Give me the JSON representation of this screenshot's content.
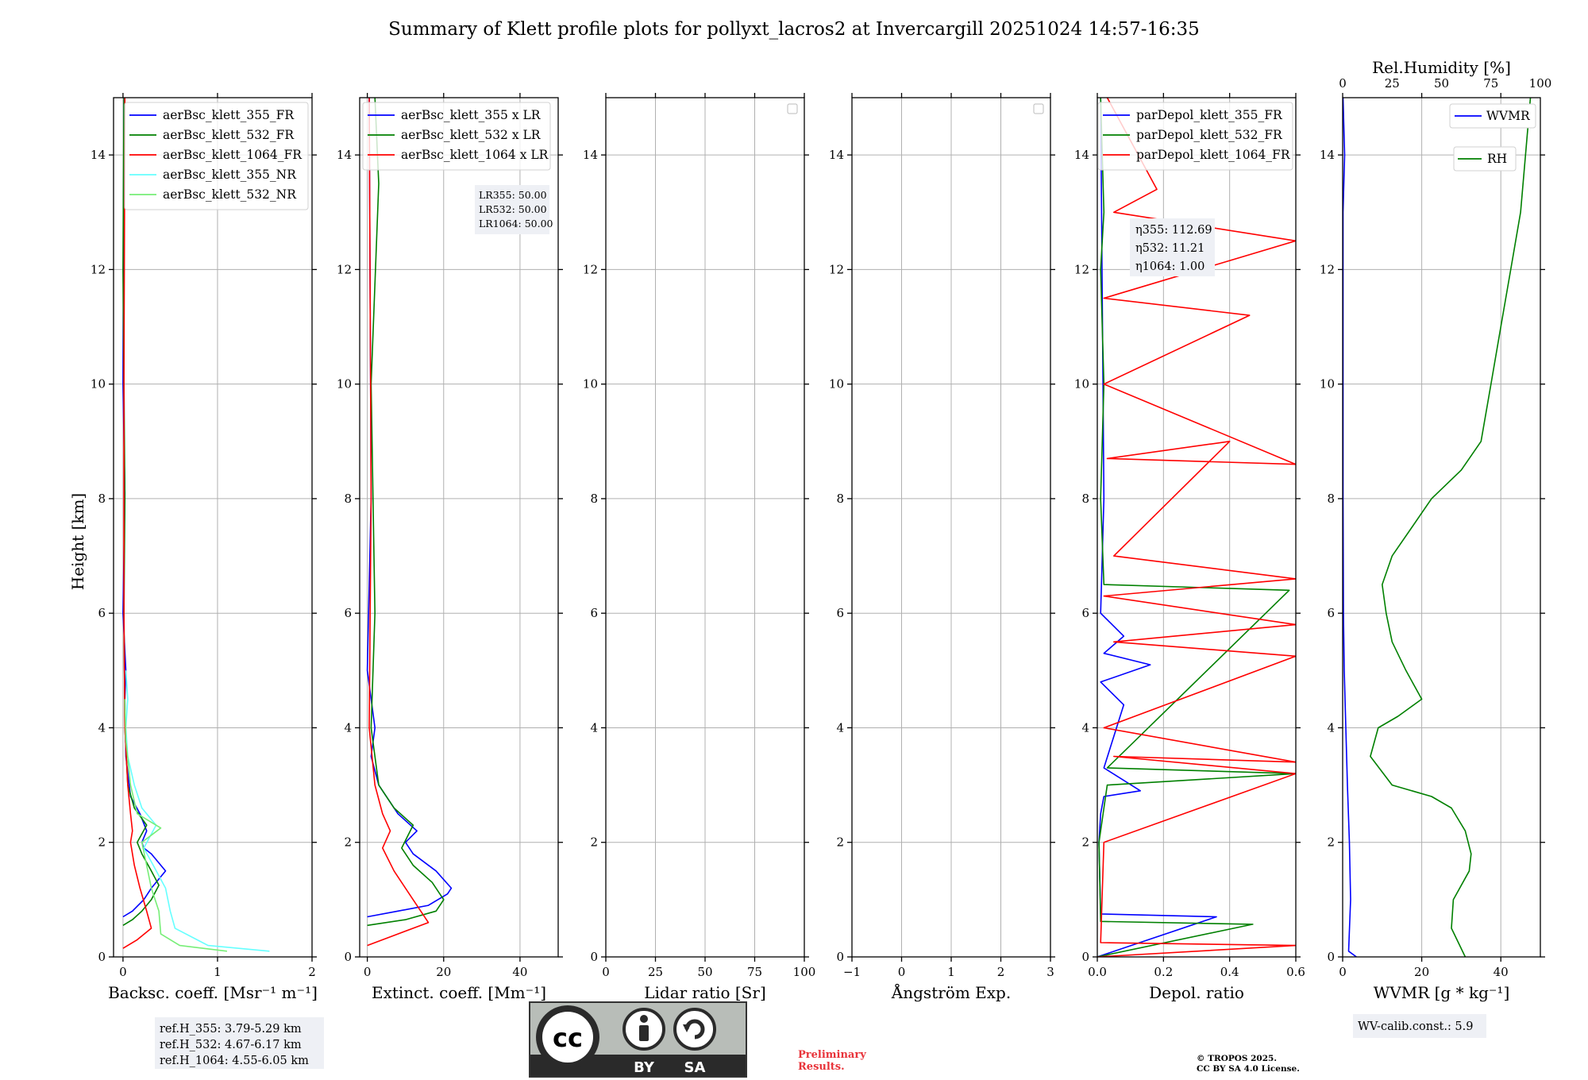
{
  "title": "Summary of Klett profile plots for pollyxt_lacros2 at Invercargill 20251024 14:57-16:35",
  "colors": {
    "b355": "#0000ff",
    "b532": "#008000",
    "b1064": "#ff0000",
    "n355": "#66ffff",
    "n532": "#77ee77",
    "grid": "#b0b0b0"
  },
  "y_label": "Height [km]",
  "y_ticks": [
    "0",
    "2",
    "4",
    "6",
    "8",
    "10",
    "12",
    "14"
  ],
  "panels": [
    {
      "xlabel": "Backsc. coeff. [Msr⁻¹ m⁻¹]",
      "xticks": [
        "0",
        "1",
        "2"
      ],
      "legend": [
        "aerBsc_klett_355_FR",
        "aerBsc_klett_532_FR",
        "aerBsc_klett_1064_FR",
        "aerBsc_klett_355_NR",
        "aerBsc_klett_532_NR"
      ]
    },
    {
      "xlabel": "Extinct. coeff. [Mm⁻¹]",
      "xticks": [
        "0",
        "20",
        "40"
      ],
      "legend": [
        "aerBsc_klett_355 x LR",
        "aerBsc_klett_532 x LR",
        "aerBsc_klett_1064 x LR"
      ],
      "lr_box": [
        "LR355: 50.00",
        "LR532: 50.00",
        "LR1064: 50.00"
      ]
    },
    {
      "xlabel": "Lidar ratio [Sr]",
      "xticks": [
        "0",
        "25",
        "50",
        "75",
        "100"
      ]
    },
    {
      "xlabel": "Ångström Exp.",
      "xticks": [
        "−1",
        "0",
        "1",
        "2",
        "3"
      ]
    },
    {
      "xlabel": "Depol. ratio",
      "xticks": [
        "0.0",
        "0.2",
        "0.4",
        "0.6"
      ],
      "legend": [
        "parDepol_klett_355_FR",
        "parDepol_klett_532_FR",
        "parDepol_klett_1064_FR"
      ],
      "eta_box": [
        "η355: 112.69",
        "η532: 11.21",
        "η1064: 1.00"
      ]
    },
    {
      "xlabel": "WVMR [g * kg⁻¹]",
      "xticks": [
        "0",
        "20",
        "40"
      ],
      "top_label": "Rel.Humidity [%]",
      "top_ticks": [
        "0",
        "25",
        "50",
        "75",
        "100"
      ],
      "legend_wvmr": "WVMR",
      "legend_rh": "RH"
    }
  ],
  "ref_box": [
    "ref.H_355: 3.79-5.29 km",
    "ref.H_532: 4.67-6.17 km",
    "ref.H_1064: 4.55-6.05 km"
  ],
  "wv_calib": "WV-calib.const.: 5.9",
  "license_logo": {
    "by": "BY",
    "sa": "SA"
  },
  "preliminary": [
    "Preliminary",
    "Results."
  ],
  "copyright": [
    "© TROPOS 2025.",
    "CC BY SA 4.0 License."
  ],
  "chart_data": [
    {
      "type": "line",
      "xlabel": "Backsc. coeff. [Msr⁻¹ m⁻¹]",
      "ylabel": "Height [km]",
      "xlim": [
        -0.1,
        2
      ],
      "ylim": [
        0,
        15
      ],
      "grid": true,
      "legend_position": "top-right",
      "series": [
        {
          "name": "aerBsc_klett_355_FR",
          "x": [
            0.0,
            0.1,
            0.22,
            0.3,
            0.45,
            0.3,
            0.22,
            0.2,
            0.25,
            0.18,
            0.08,
            0.03,
            0.02,
            0.03,
            0.0,
            0.02,
            0.0,
            0.01
          ],
          "y": [
            0.7,
            0.8,
            1.0,
            1.2,
            1.5,
            1.8,
            1.9,
            2.0,
            2.2,
            2.5,
            2.8,
            3.5,
            4.5,
            5.0,
            6.0,
            8.1,
            10,
            15
          ]
        },
        {
          "name": "aerBsc_klett_532_FR",
          "x": [
            0.0,
            0.1,
            0.2,
            0.3,
            0.38,
            0.3,
            0.2,
            0.15,
            0.25,
            0.12,
            0.05,
            0.02,
            0.01,
            0.02,
            0.0,
            0.01
          ],
          "y": [
            0.55,
            0.65,
            0.8,
            1.0,
            1.25,
            1.5,
            1.8,
            2.0,
            2.3,
            2.6,
            3.0,
            4.0,
            6.0,
            8.0,
            12,
            15
          ]
        },
        {
          "name": "aerBsc_klett_1064_FR",
          "x": [
            0.0,
            0.15,
            0.3,
            0.25,
            0.18,
            0.12,
            0.08,
            0.1,
            0.08,
            0.05,
            0.02,
            0.01,
            0.01,
            0.02
          ],
          "y": [
            0.15,
            0.3,
            0.5,
            0.8,
            1.2,
            1.6,
            2.0,
            2.2,
            2.5,
            3.0,
            4.0,
            6.0,
            10,
            15
          ]
        },
        {
          "name": "aerBsc_klett_355_NR",
          "x": [
            1.55,
            0.9,
            0.55,
            0.5,
            0.45,
            0.32,
            0.22,
            0.35,
            0.2,
            0.12,
            0.05,
            0.03,
            0.05,
            0.03
          ],
          "y": [
            0.1,
            0.2,
            0.5,
            0.8,
            1.2,
            1.6,
            1.9,
            2.3,
            2.6,
            3.0,
            3.5,
            4.0,
            4.5,
            5.0
          ]
        },
        {
          "name": "aerBsc_klett_532_NR",
          "x": [
            1.1,
            0.6,
            0.4,
            0.38,
            0.3,
            0.25,
            0.2,
            0.4,
            0.15,
            0.08,
            0.03,
            0.02
          ],
          "y": [
            0.1,
            0.2,
            0.4,
            0.8,
            1.2,
            1.6,
            2.0,
            2.25,
            2.5,
            3.0,
            3.8,
            4.5
          ]
        }
      ]
    },
    {
      "type": "line",
      "xlabel": "Extinct. coeff. [Mm⁻¹]",
      "ylabel": "Height [km]",
      "xlim": [
        -2,
        50
      ],
      "ylim": [
        0,
        15
      ],
      "grid": true,
      "legend_position": "top-right",
      "series": [
        {
          "name": "aerBsc_klett_355 x LR",
          "x": [
            0,
            8,
            16,
            21,
            22,
            18,
            12,
            10,
            13,
            8,
            3,
            1,
            2,
            0,
            1,
            0.5
          ],
          "y": [
            0.7,
            0.8,
            0.9,
            1.1,
            1.2,
            1.5,
            1.8,
            2.0,
            2.2,
            2.5,
            3.0,
            3.5,
            4.0,
            5.0,
            8.0,
            15
          ]
        },
        {
          "name": "aerBsc_klett_532 x LR",
          "x": [
            0,
            10,
            18,
            20,
            17,
            12,
            9,
            12,
            7,
            3,
            1,
            2,
            1,
            3,
            2
          ],
          "y": [
            0.55,
            0.65,
            0.8,
            1.0,
            1.3,
            1.6,
            1.9,
            2.3,
            2.6,
            3.0,
            4.0,
            6.0,
            10,
            13.5,
            15
          ]
        },
        {
          "name": "aerBsc_klett_1064 x LR",
          "x": [
            0,
            8,
            16,
            12,
            7,
            4,
            6,
            4,
            2,
            0.5,
            1,
            0.5
          ],
          "y": [
            0.2,
            0.4,
            0.6,
            1.0,
            1.5,
            1.9,
            2.2,
            2.5,
            3.0,
            4.0,
            8.0,
            15
          ]
        }
      ]
    },
    {
      "type": "line",
      "xlabel": "Lidar ratio [Sr]",
      "ylabel": "Height [km]",
      "xlim": [
        0,
        100
      ],
      "ylim": [
        0,
        15
      ],
      "grid": true,
      "series": []
    },
    {
      "type": "line",
      "xlabel": "Ångström Exp.",
      "ylabel": "Height [km]",
      "xlim": [
        -1,
        3
      ],
      "ylim": [
        0,
        15
      ],
      "grid": true,
      "series": []
    },
    {
      "type": "line",
      "xlabel": "Depol. ratio",
      "ylabel": "Height [km]",
      "xlim": [
        0,
        0.6
      ],
      "ylim": [
        0,
        15
      ],
      "grid": true,
      "legend_position": "top-right",
      "series": [
        {
          "name": "parDepol_klett_355_FR",
          "x": [
            0.0,
            0.36,
            0.01,
            0.005,
            0.01,
            0.02,
            0.13,
            0.02,
            0.08,
            0.01,
            0.16,
            0.02,
            0.08,
            0.01,
            0.02,
            0.01
          ],
          "y": [
            0.0,
            0.7,
            0.75,
            2.0,
            2.5,
            2.8,
            2.9,
            3.3,
            4.4,
            4.8,
            5.1,
            5.3,
            5.6,
            6.0,
            8.0,
            15
          ]
        },
        {
          "name": "parDepol_klett_532_FR",
          "x": [
            0.0,
            0.47,
            0.01,
            0.005,
            0.03,
            0.6,
            0.03,
            0.58,
            0.02,
            0.01,
            0.02,
            0.01,
            0.02,
            0.01
          ],
          "y": [
            0.0,
            0.57,
            0.62,
            2.0,
            3.0,
            3.2,
            3.3,
            6.4,
            6.5,
            8.0,
            10,
            12,
            13,
            15
          ]
        },
        {
          "name": "parDepol_klett_1064_FR",
          "x": [
            0.0,
            0.6,
            0.01,
            0.02,
            0.6,
            0.05,
            0.6,
            0.02,
            0.6,
            0.05,
            0.6,
            0.02,
            0.6,
            0.05,
            0.4,
            0.03,
            0.6,
            0.02,
            0.46,
            0.02,
            0.6,
            0.05,
            0.18,
            0.03
          ],
          "y": [
            0.0,
            0.2,
            0.25,
            2.0,
            3.2,
            3.5,
            3.4,
            4.0,
            5.25,
            5.5,
            5.8,
            6.3,
            6.6,
            7.0,
            9.0,
            8.7,
            8.6,
            10,
            11.2,
            11.5,
            12.5,
            13,
            13.4,
            15
          ]
        }
      ]
    },
    {
      "type": "line",
      "xlabel": "WVMR [g * kg⁻¹]",
      "ylabel": "Height [km]",
      "xlim": [
        0,
        50
      ],
      "ylim": [
        0,
        15
      ],
      "x2label": "Rel.Humidity [%]",
      "x2lim": [
        0,
        100
      ],
      "grid": true,
      "legend_position": "top-right",
      "series": [
        {
          "name": "WVMR",
          "axis": "x",
          "x": [
            3.5,
            1.5,
            2.0,
            1.7,
            1.2,
            0.8,
            0.4,
            0.2,
            0.1,
            0.1,
            0.5,
            0.1
          ],
          "y": [
            0.0,
            0.1,
            1.0,
            2.0,
            3.0,
            4.0,
            5.0,
            6.0,
            8.0,
            13.0,
            14.0,
            15
          ]
        },
        {
          "name": "RH",
          "axis": "x2",
          "x": [
            62,
            55,
            56,
            64,
            65,
            62,
            55,
            45,
            25,
            14,
            18,
            28,
            40,
            32,
            25,
            22,
            20,
            25,
            35,
            45,
            60,
            70,
            75,
            80,
            85,
            90,
            95
          ],
          "y": [
            0.0,
            0.5,
            1.0,
            1.5,
            1.8,
            2.2,
            2.6,
            2.8,
            3.0,
            3.5,
            4.0,
            4.2,
            4.5,
            5.0,
            5.5,
            6.0,
            6.5,
            7.0,
            7.5,
            8.0,
            8.5,
            9.0,
            10,
            11,
            12,
            13,
            15
          ]
        }
      ]
    }
  ]
}
